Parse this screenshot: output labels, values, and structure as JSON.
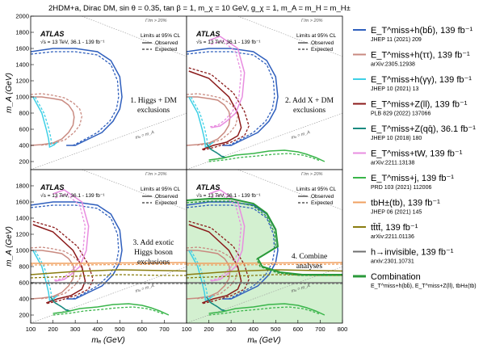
{
  "title": "2HDM+a, Dirac DM, sin θ = 0.35, tan β = 1, m_χ = 10 GeV, g_χ = 1, m_A = m_H = m_H±",
  "panel_header": {
    "experiment": "ATLAS",
    "energy_lumi": "√s = 13 TeV, 36.1 - 139 fb⁻¹",
    "limits": "Limits at 95% CL",
    "observed": "Observed",
    "expected": "Expected"
  },
  "diagonal_labels": {
    "width_label": "Γ/m > 20%",
    "mass_label": "mₐ = m_A"
  },
  "panels": [
    {
      "line1": "1. Higgs + DM",
      "line2": "exclusions"
    },
    {
      "line1": "2. Add X + DM",
      "line2": "exclusions"
    },
    {
      "line1": "3. Add exotic",
      "line2": "Higgs boson",
      "line3": "exclusions"
    },
    {
      "line1": "4. Combine",
      "line2": "analyses"
    }
  ],
  "axes": {
    "xlabel": "mₐ (GeV)",
    "ylabel": "m_A (GeV)",
    "x_ticks_left": [
      "100",
      "200",
      "300",
      "400",
      "500",
      "600",
      "700"
    ],
    "x_ticks_right": [
      "100",
      "200",
      "300",
      "400",
      "500",
      "600",
      "700",
      "800"
    ],
    "y_ticks_top": [
      "200",
      "400",
      "600",
      "800",
      "1000",
      "1200",
      "1400",
      "1600",
      "1800",
      "2000"
    ],
    "y_ticks_bottom": [
      "200",
      "400",
      "600",
      "800",
      "1000",
      "1200",
      "1400",
      "1600",
      "1800"
    ]
  },
  "legend": [
    {
      "label": "E_T^miss+h(bb̄), 139 fb⁻¹",
      "ref": "JHEP 11 (2021) 209",
      "color": "#2f5fbd"
    },
    {
      "label": "E_T^miss+h(ττ), 139 fb⁻¹",
      "ref": "arXiv:2305.12938",
      "color": "#c98a80"
    },
    {
      "label": "E_T^miss+h(γγ), 139 fb⁻¹",
      "ref": "JHEP 10 (2021) 13",
      "color": "#3ed0e6"
    },
    {
      "label": "E_T^miss+Z(ll), 139 fb⁻¹",
      "ref": "PLB 829 (2022) 137066",
      "color": "#8b1a1a"
    },
    {
      "label": "E_T^miss+Z(qq̄), 36.1 fb⁻¹",
      "ref": "JHEP 10 (2018) 180",
      "color": "#1a8a80"
    },
    {
      "label": "E_T^miss+tW, 139 fb⁻¹",
      "ref": "arXiv:2211.13138",
      "color": "#e88de0"
    },
    {
      "label": "E_T^miss+j, 139 fb⁻¹",
      "ref": "PRD 103 (2021) 112006",
      "color": "#39b54a"
    },
    {
      "label": "tbH±(tb), 139 fb⁻¹",
      "ref": "JHEP 06 (2021) 145",
      "color": "#f0a060"
    },
    {
      "label": "tt̄tt̄, 139 fb⁻¹",
      "ref": "arXiv:2211.01136",
      "color": "#8a7d10"
    },
    {
      "label": "h→invisible, 139 fb⁻¹",
      "ref": "arxiv:2301.10731",
      "color": "#6f6f6f"
    },
    {
      "label": "Combination",
      "ref": "E_T^miss+h(bb̄), E_T^miss+Z(ll), tbH±(tb)",
      "color": "#2a9a3a"
    }
  ],
  "chart_data": {
    "type": "line",
    "x_range": [
      100,
      800
    ],
    "y_range": [
      100,
      2000
    ],
    "series": [
      {
        "name": "E_T^miss+h(bb̄)",
        "color": "#2f5fbd",
        "observed": [
          [
            100,
            1560
          ],
          [
            200,
            1600
          ],
          [
            300,
            1600
          ],
          [
            400,
            1560
          ],
          [
            460,
            1450
          ],
          [
            500,
            1250
          ],
          [
            510,
            1000
          ],
          [
            500,
            850
          ],
          [
            470,
            700
          ],
          [
            420,
            560
          ],
          [
            360,
            480
          ],
          [
            300,
            400
          ],
          [
            260,
            400
          ]
        ],
        "expected": [
          [
            100,
            1530
          ],
          [
            200,
            1560
          ],
          [
            300,
            1560
          ],
          [
            400,
            1520
          ],
          [
            460,
            1400
          ],
          [
            490,
            1200
          ],
          [
            495,
            1000
          ],
          [
            485,
            850
          ],
          [
            455,
            700
          ],
          [
            400,
            560
          ],
          [
            340,
            470
          ],
          [
            290,
            400
          ]
        ]
      },
      {
        "name": "E_T^miss+h(ττ)",
        "color": "#c98a80",
        "observed": [
          [
            100,
            1000
          ],
          [
            150,
            1000
          ],
          [
            200,
            980
          ],
          [
            240,
            960
          ],
          [
            270,
            900
          ],
          [
            290,
            820
          ],
          [
            295,
            750
          ],
          [
            290,
            650
          ],
          [
            270,
            560
          ],
          [
            240,
            480
          ],
          [
            200,
            430
          ],
          [
            150,
            410
          ],
          [
            100,
            400
          ]
        ],
        "expected": [
          [
            100,
            1030
          ],
          [
            150,
            1040
          ],
          [
            200,
            1020
          ],
          [
            250,
            990
          ],
          [
            290,
            930
          ],
          [
            320,
            850
          ],
          [
            330,
            760
          ],
          [
            320,
            650
          ],
          [
            295,
            560
          ],
          [
            255,
            470
          ],
          [
            200,
            420
          ],
          [
            140,
            400
          ]
        ]
      },
      {
        "name": "E_T^miss+h(γγ)",
        "color": "#3ed0e6",
        "observed": [
          [
            110,
            1000
          ],
          [
            150,
            800
          ],
          [
            170,
            600
          ],
          [
            180,
            480
          ],
          [
            185,
            380
          ],
          [
            200,
            400
          ],
          [
            220,
            440
          ]
        ],
        "expected": [
          [
            120,
            1000
          ],
          [
            160,
            800
          ],
          [
            180,
            620
          ],
          [
            190,
            500
          ],
          [
            195,
            400
          ],
          [
            210,
            410
          ]
        ]
      },
      {
        "name": "E_T^miss+Z(ll)",
        "color": "#8b1a1a",
        "observed": [
          [
            110,
            1320
          ],
          [
            200,
            1230
          ],
          [
            290,
            1000
          ],
          [
            330,
            800
          ],
          [
            345,
            620
          ],
          [
            330,
            520
          ],
          [
            280,
            440
          ],
          [
            220,
            400
          ],
          [
            170,
            350
          ]
        ],
        "expected": [
          [
            110,
            1360
          ],
          [
            210,
            1280
          ],
          [
            310,
            1050
          ],
          [
            360,
            820
          ],
          [
            380,
            640
          ],
          [
            360,
            520
          ],
          [
            300,
            440
          ],
          [
            230,
            380
          ],
          [
            170,
            340
          ]
        ]
      },
      {
        "name": "E_T^miss+Z(qq̄)",
        "color": "#1a8a80",
        "observed": [
          [
            195,
            400
          ],
          [
            210,
            350
          ],
          [
            240,
            300
          ],
          [
            260,
            260
          ],
          [
            280,
            250
          ]
        ],
        "expected": [
          [
            190,
            420
          ],
          [
            205,
            360
          ],
          [
            235,
            310
          ],
          [
            255,
            270
          ],
          [
            275,
            255
          ]
        ]
      },
      {
        "name": "E_T^miss+tW",
        "color": "#e88de0",
        "observed": [
          [
            200,
            1700
          ],
          [
            250,
            1750
          ],
          [
            330,
            1600
          ],
          [
            360,
            1300
          ],
          [
            350,
            1000
          ],
          [
            320,
            800
          ],
          [
            280,
            700
          ],
          [
            250,
            640
          ],
          [
            210,
            620
          ]
        ],
        "expected": [
          [
            210,
            1650
          ],
          [
            260,
            1700
          ],
          [
            320,
            1560
          ],
          [
            345,
            1300
          ],
          [
            335,
            1000
          ],
          [
            305,
            810
          ],
          [
            270,
            710
          ],
          [
            240,
            650
          ],
          [
            205,
            630
          ]
        ]
      },
      {
        "name": "E_T^miss+j",
        "color": "#39b54a",
        "observed": [
          [
            200,
            220
          ],
          [
            260,
            240
          ],
          [
            320,
            280
          ],
          [
            400,
            300
          ],
          [
            470,
            330
          ],
          [
            540,
            340
          ],
          [
            600,
            320
          ],
          [
            640,
            290
          ],
          [
            680,
            250
          ],
          [
            720,
            200
          ]
        ],
        "expected": [
          [
            200,
            200
          ],
          [
            270,
            220
          ],
          [
            340,
            250
          ],
          [
            420,
            270
          ],
          [
            490,
            290
          ],
          [
            560,
            300
          ],
          [
            620,
            280
          ],
          [
            660,
            250
          ],
          [
            700,
            210
          ]
        ]
      },
      {
        "name": "tbH±(tb)",
        "color": "#f0a060",
        "observed": [
          [
            100,
            840
          ],
          [
            300,
            840
          ],
          [
            500,
            845
          ],
          [
            700,
            848
          ],
          [
            800,
            850
          ]
        ],
        "expected": [
          [
            100,
            820
          ],
          [
            300,
            820
          ],
          [
            500,
            825
          ],
          [
            700,
            828
          ],
          [
            800,
            830
          ]
        ]
      },
      {
        "name": "tt̄tt̄",
        "color": "#8a7d10",
        "observed": [
          [
            100,
            700
          ],
          [
            300,
            740
          ],
          [
            500,
            760
          ],
          [
            700,
            750
          ],
          [
            800,
            745
          ]
        ],
        "expected": [
          [
            100,
            660
          ],
          [
            300,
            680
          ],
          [
            500,
            700
          ],
          [
            700,
            690
          ],
          [
            800,
            690
          ]
        ]
      },
      {
        "name": "h→invisible",
        "color": "#6f6f6f",
        "observed": [
          [
            100,
            600
          ],
          [
            300,
            600
          ],
          [
            500,
            600
          ],
          [
            700,
            600
          ],
          [
            800,
            600
          ]
        ],
        "expected": [
          [
            100,
            590
          ],
          [
            300,
            590
          ],
          [
            500,
            590
          ],
          [
            700,
            590
          ],
          [
            800,
            590
          ]
        ]
      },
      {
        "name": "Combination",
        "color": "#2a9a3a",
        "observed": [
          [
            100,
            1620
          ],
          [
            200,
            1640
          ],
          [
            300,
            1640
          ],
          [
            400,
            1580
          ],
          [
            460,
            1460
          ],
          [
            500,
            1260
          ],
          [
            510,
            1050
          ],
          [
            450,
            950
          ],
          [
            420,
            900
          ],
          [
            440,
            800
          ],
          [
            520,
            730
          ],
          [
            620,
            700
          ],
          [
            800,
            700
          ]
        ],
        "expected": [
          [
            100,
            1590
          ],
          [
            200,
            1610
          ],
          [
            300,
            1610
          ],
          [
            400,
            1550
          ],
          [
            460,
            1420
          ],
          [
            495,
            1220
          ],
          [
            500,
            1040
          ],
          [
            445,
            940
          ],
          [
            415,
            890
          ],
          [
            430,
            800
          ],
          [
            510,
            720
          ],
          [
            610,
            690
          ],
          [
            800,
            690
          ]
        ]
      }
    ],
    "panel_series": [
      [
        "E_T^miss+h(bb̄)",
        "E_T^miss+h(ττ)",
        "E_T^miss+h(γγ)"
      ],
      [
        "E_T^miss+h(bb̄)",
        "E_T^miss+h(ττ)",
        "E_T^miss+h(γγ)",
        "E_T^miss+Z(ll)",
        "E_T^miss+Z(qq̄)",
        "E_T^miss+tW",
        "E_T^miss+j"
      ],
      [
        "E_T^miss+h(bb̄)",
        "E_T^miss+h(ττ)",
        "E_T^miss+h(γγ)",
        "E_T^miss+Z(ll)",
        "E_T^miss+Z(qq̄)",
        "E_T^miss+tW",
        "E_T^miss+j",
        "tbH±(tb)",
        "tt̄tt̄",
        "h→invisible"
      ],
      [
        "E_T^miss+h(bb̄)",
        "E_T^miss+h(ττ)",
        "E_T^miss+h(γγ)",
        "E_T^miss+Z(ll)",
        "E_T^miss+Z(qq̄)",
        "E_T^miss+tW",
        "E_T^miss+j",
        "tbH±(tb)",
        "tt̄tt̄",
        "h→invisible",
        "Combination"
      ]
    ],
    "combination_fill": "#d3f0d0",
    "grid": false
  }
}
